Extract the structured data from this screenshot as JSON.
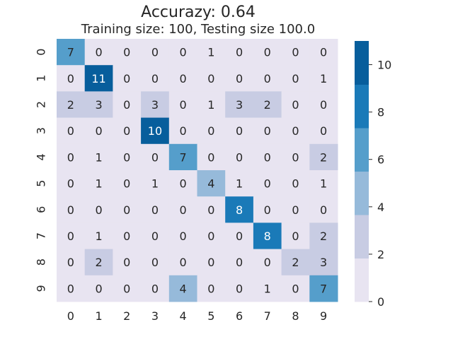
{
  "chart_data": {
    "type": "heatmap",
    "title": "Accurazy: 0.64",
    "subtitle": "Training size: 100, Testing size 100.0",
    "xlabel": "",
    "ylabel": "",
    "x_tick_labels": [
      "0",
      "1",
      "2",
      "3",
      "4",
      "5",
      "6",
      "7",
      "8",
      "9"
    ],
    "y_tick_labels": [
      "0",
      "1",
      "2",
      "3",
      "4",
      "5",
      "6",
      "7",
      "8",
      "9"
    ],
    "matrix": [
      [
        7,
        0,
        0,
        0,
        0,
        1,
        0,
        0,
        0,
        0
      ],
      [
        0,
        11,
        0,
        0,
        0,
        0,
        0,
        0,
        0,
        1
      ],
      [
        2,
        3,
        0,
        3,
        0,
        1,
        3,
        2,
        0,
        0
      ],
      [
        0,
        0,
        0,
        10,
        0,
        0,
        0,
        0,
        0,
        0
      ],
      [
        0,
        1,
        0,
        0,
        7,
        0,
        0,
        0,
        0,
        2
      ],
      [
        0,
        1,
        0,
        1,
        0,
        4,
        1,
        0,
        0,
        1
      ],
      [
        0,
        0,
        0,
        0,
        0,
        0,
        8,
        0,
        0,
        0
      ],
      [
        0,
        1,
        0,
        0,
        0,
        0,
        0,
        8,
        0,
        2
      ],
      [
        0,
        2,
        0,
        0,
        0,
        0,
        0,
        0,
        2,
        3
      ],
      [
        0,
        0,
        0,
        0,
        4,
        0,
        0,
        1,
        0,
        7
      ]
    ],
    "colorbar": {
      "vmin": 0,
      "vmax": 11,
      "ticks": [
        0,
        2,
        4,
        6,
        8,
        10
      ],
      "colors": [
        "#e8e4f1",
        "#c8cce3",
        "#96bada",
        "#559ecb",
        "#1a7ab8",
        "#075e9c"
      ]
    },
    "annotate": true,
    "grid": false
  }
}
